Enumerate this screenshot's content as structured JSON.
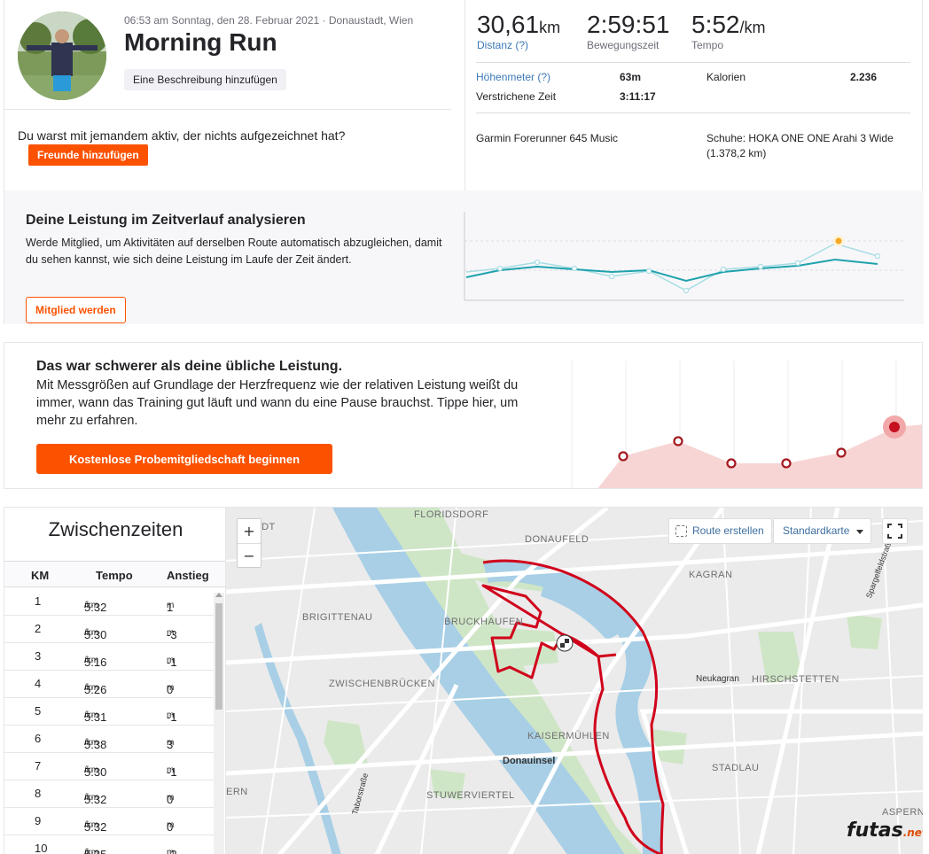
{
  "activity": {
    "meta": "06:53 am Sonntag, den 28. Februar 2021 · Donaustadt, Wien",
    "title": "Morning Run",
    "add_description": "Eine Beschreibung hinzufügen",
    "together_question": "Du warst mit jemandem aktiv, der nichts aufgezeichnet hat?",
    "add_friends": "Freunde hinzufügen"
  },
  "stats": {
    "distance": {
      "value": "30,61",
      "unit": "km",
      "label": "Distanz (?)"
    },
    "moving_time": {
      "value": "2:59:51",
      "label": "Bewegungszeit"
    },
    "pace": {
      "value": "5:52",
      "unit": "/km",
      "label": "Tempo"
    },
    "elevation": {
      "label": "Höhenmeter (?)",
      "value": "63m"
    },
    "calories": {
      "label": "Kalorien",
      "value": "2.236"
    },
    "elapsed": {
      "label": "Verstrichene Zeit",
      "value": "3:11:17"
    },
    "device": "Garmin Forerunner 645 Music",
    "shoes": "Schuhe: HOKA ONE ONE Arahi 3 Wide",
    "shoes_distance": "(1.378,2 km)"
  },
  "performance": {
    "title": "Deine Leistung im Zeitverlauf analysieren",
    "text": "Werde Mitglied, um Aktivitäten auf derselben Route automatisch abzugleichen, damit du sehen kannst, wie sich deine Leistung im Laufe der Zeit ändert.",
    "button": "Mitglied werden"
  },
  "harder": {
    "title": "Das war schwerer als deine übliche Leistung.",
    "text": "Mit Messgrößen auf Grundlage der Herzfrequenz wie der relativen Leistung weißt du immer, wann das Training gut läuft und wann du eine Pause brauchst. Tippe hier, um mehr zu erfahren.",
    "button": "Kostenlose Probemitgliedschaft beginnen"
  },
  "splits": {
    "title": "Zwischenzeiten",
    "headers": {
      "km": "KM",
      "pace": "Tempo",
      "elev": "Anstieg"
    },
    "pace_unit": "/km",
    "elev_unit": "m",
    "rows": [
      {
        "km": "1",
        "pace": "5:32",
        "elev": "1"
      },
      {
        "km": "2",
        "pace": "5:30",
        "elev": "-3"
      },
      {
        "km": "3",
        "pace": "5:16",
        "elev": "-1"
      },
      {
        "km": "4",
        "pace": "5:26",
        "elev": "0"
      },
      {
        "km": "5",
        "pace": "5:31",
        "elev": "-1"
      },
      {
        "km": "6",
        "pace": "5:38",
        "elev": "3"
      },
      {
        "km": "7",
        "pace": "5:30",
        "elev": "-1"
      },
      {
        "km": "8",
        "pace": "5:32",
        "elev": "0"
      },
      {
        "km": "9",
        "pace": "5:32",
        "elev": "0"
      },
      {
        "km": "10",
        "pace": "5:35",
        "elev": "-2"
      }
    ]
  },
  "map": {
    "zoom_in": "+",
    "zoom_out": "−",
    "route_button": "Route erstellen",
    "map_type": "Standardkarte",
    "labels": {
      "floridsdorf": "FLORIDSDORF",
      "stadt": "STADT",
      "donaufeld": "DONAUFELD",
      "kagran": "KAGRAN",
      "brigittenau": "BRIGITTENAU",
      "bruckhaufen": "BRUCKHAUFEN",
      "zwischenbruecken": "ZWISCHENBRÜCKEN",
      "neukagran": "Neukagran",
      "hirschstetten": "HIRSCHSTETTEN",
      "kaisermuehlen": "KAISERMÜHLEN",
      "donauinsel": "Donauinsel",
      "stadlau": "STADLAU",
      "stuwerviertel": "STUWERVIERTEL",
      "ern": "ERN",
      "aspern": "ASPERN",
      "taborstrasse": "Taborstraße",
      "spargelfeld": "Spargelfeldstraße"
    },
    "watermark": "futas",
    "watermark_tld": ".net"
  },
  "colors": {
    "accent": "#fc5200",
    "route": "#d0021b",
    "chart_line": "#1fa2ad"
  }
}
